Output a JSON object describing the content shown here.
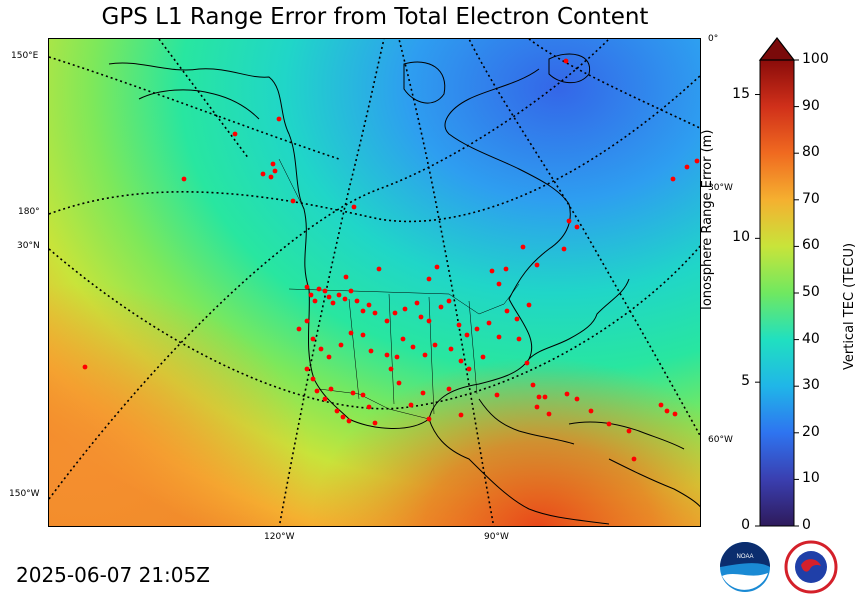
{
  "title": "GPS L1 Range Error from Total Electron Content",
  "timestamp": "2025-06-07 21:05Z",
  "map": {
    "longitude_labels_bottom": [
      "120°W",
      "90°W"
    ],
    "left_labels": [
      "150°E",
      "180°",
      "30°N",
      "150°W"
    ],
    "right_labels": [
      "0°",
      "30°W",
      "60°W"
    ],
    "station_marker_color": "#ff0000"
  },
  "colorbar": {
    "tec_label": "Vertical TEC (TECU)",
    "tec_ticks": [
      "0",
      "10",
      "20",
      "30",
      "40",
      "50",
      "60",
      "70",
      "80",
      "90",
      "100"
    ],
    "range_label": "Ionosphere Range Error (m)",
    "range_ticks": [
      "0",
      "5",
      "10",
      "15"
    ],
    "tec_min": 0,
    "tec_max": 100,
    "range_max_m": 16.2,
    "extend": "max"
  },
  "logos": {
    "noaa": "NOAA",
    "nws": "NATIONAL WEATHER SERVICE"
  },
  "colors": {
    "low": "#2e1a5b",
    "mid": "#20e0c0",
    "high": "#9a0c08"
  }
}
